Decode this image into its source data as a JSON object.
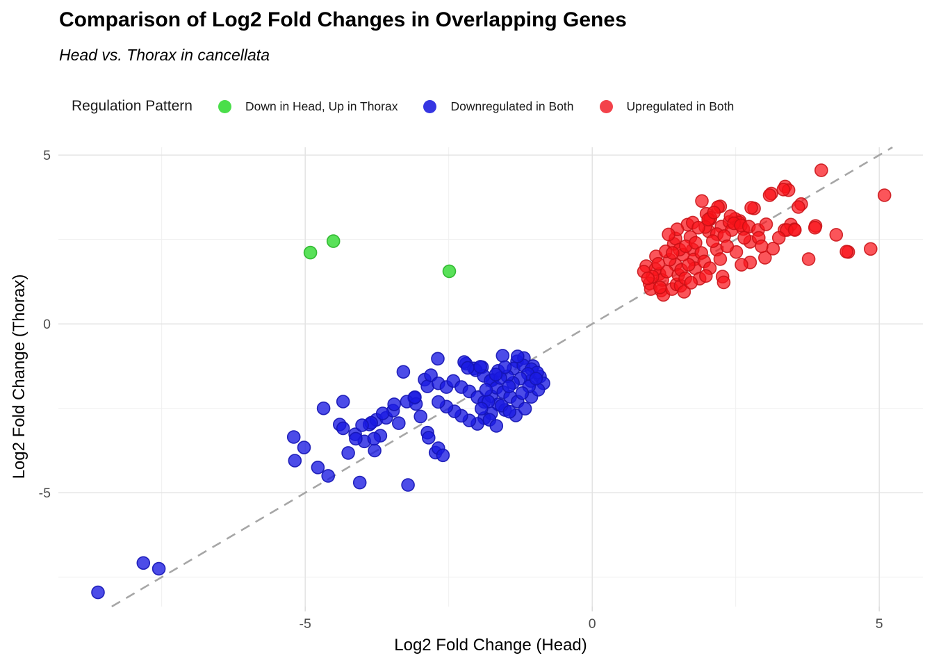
{
  "title": "Comparison of Log2 Fold Changes in Overlapping Genes",
  "subtitle": "Head vs. Thorax in cancellata",
  "legend": {
    "title": "Regulation Pattern",
    "items": [
      {
        "label": "Down in Head, Up in Thorax",
        "color": "#4ade4a"
      },
      {
        "label": "Downregulated in Both",
        "color": "#3636e2"
      },
      {
        "label": "Upregulated in Both",
        "color": "#f3424a"
      }
    ]
  },
  "chart_data": {
    "type": "scatter",
    "title": "Comparison of Log2 Fold Changes in Overlapping Genes",
    "subtitle": "Head vs. Thorax in cancellata",
    "xlabel": "Log2 Fold Change (Head)",
    "ylabel": "Log2 Fold Change (Thorax)",
    "xlim": [
      -9.3,
      5.76
    ],
    "ylim": [
      -8.37,
      5.23
    ],
    "x_ticks": [
      -5,
      0,
      5
    ],
    "x_tick_labels": [
      "-5",
      "0",
      "5"
    ],
    "y_ticks": [
      -5,
      0,
      5
    ],
    "y_tick_labels": [
      "-5",
      "0",
      "5"
    ],
    "x_minor_ticks": [
      -7.5,
      -2.5,
      2.5
    ],
    "y_minor_ticks": [
      -7.5,
      -2.5,
      2.5
    ],
    "grid": true,
    "legend_position": "top",
    "reference_line": {
      "type": "identity",
      "style": "dashed",
      "color": "#a6a6a6"
    },
    "series": [
      {
        "name": "Down in Head, Up in Thorax",
        "fill": "#3cdc3c",
        "fill_opacity": 0.85,
        "stroke": "#28b428",
        "stroke_opacity": 0.9,
        "points": [
          [
            -4.91,
            2.11
          ],
          [
            -4.51,
            2.45
          ],
          [
            -2.49,
            1.56
          ]
        ]
      },
      {
        "name": "Downregulated in Both",
        "fill": "#1919e1",
        "fill_opacity": 0.78,
        "stroke": "#1414b4",
        "stroke_opacity": 0.9,
        "points": [
          [
            -8.61,
            -7.95
          ],
          [
            -7.82,
            -7.08
          ],
          [
            -7.55,
            -7.25
          ],
          [
            -5.2,
            -3.35
          ],
          [
            -5.02,
            -3.66
          ],
          [
            -5.18,
            -4.05
          ],
          [
            -4.78,
            -4.25
          ],
          [
            -4.6,
            -4.5
          ],
          [
            -4.05,
            -4.7
          ],
          [
            -3.21,
            -4.77
          ],
          [
            -4.25,
            -3.82
          ],
          [
            -3.79,
            -3.75
          ],
          [
            -4.13,
            -3.27
          ],
          [
            -3.97,
            -3.48
          ],
          [
            -3.69,
            -3.31
          ],
          [
            -4.34,
            -2.3
          ],
          [
            -4.68,
            -2.5
          ],
          [
            -4.4,
            -2.98
          ],
          [
            -4.34,
            -3.09
          ],
          [
            -4.12,
            -3.4
          ],
          [
            -3.88,
            -2.98
          ],
          [
            -3.76,
            -2.84
          ],
          [
            -3.59,
            -2.78
          ],
          [
            -3.47,
            -2.57
          ],
          [
            -3.37,
            -2.94
          ],
          [
            -3.8,
            -3.4
          ],
          [
            -3.29,
            -1.42
          ],
          [
            -2.92,
            -1.65
          ],
          [
            -2.87,
            -1.85
          ],
          [
            -3.1,
            -2.19
          ],
          [
            -3.23,
            -2.3
          ],
          [
            -3.45,
            -2.38
          ],
          [
            -3.65,
            -2.65
          ],
          [
            -3.85,
            -2.93
          ],
          [
            -4.01,
            -3.0
          ],
          [
            -3.07,
            -2.37
          ],
          [
            -2.99,
            -2.74
          ],
          [
            -2.87,
            -3.22
          ],
          [
            -2.73,
            -3.81
          ],
          [
            -2.68,
            -3.68
          ],
          [
            -2.85,
            -3.37
          ],
          [
            -2.6,
            -3.89
          ],
          [
            -2.69,
            -1.03
          ],
          [
            -2.2,
            -1.18
          ],
          [
            -2.06,
            -1.32
          ],
          [
            -1.92,
            -1.28
          ],
          [
            -1.64,
            -1.39
          ],
          [
            -1.31,
            -1.11
          ],
          [
            -1.19,
            -1.01
          ],
          [
            -1.03,
            -1.25
          ],
          [
            -0.91,
            -1.56
          ],
          [
            -2.81,
            -1.52
          ],
          [
            -2.68,
            -1.76
          ],
          [
            -2.54,
            -1.87
          ],
          [
            -2.42,
            -1.69
          ],
          [
            -2.28,
            -1.87
          ],
          [
            -2.14,
            -2.0
          ],
          [
            -2.0,
            -2.17
          ],
          [
            -1.88,
            -2.31
          ],
          [
            -1.76,
            -2.14
          ],
          [
            -1.64,
            -2.38
          ],
          [
            -1.52,
            -2.55
          ],
          [
            -1.76,
            -2.65
          ],
          [
            -1.88,
            -2.79
          ],
          [
            -2.0,
            -2.96
          ],
          [
            -2.14,
            -2.86
          ],
          [
            -2.28,
            -2.72
          ],
          [
            -2.4,
            -2.59
          ],
          [
            -2.54,
            -2.45
          ],
          [
            -2.68,
            -2.31
          ],
          [
            -3.09,
            -2.17
          ],
          [
            -1.56,
            -0.94
          ],
          [
            -1.37,
            -1.32
          ],
          [
            -1.07,
            -1.69
          ],
          [
            -0.85,
            -1.76
          ],
          [
            -1.74,
            -1.66
          ],
          [
            -2.03,
            -1.37
          ],
          [
            -1.89,
            -1.54
          ],
          [
            -1.77,
            -1.68
          ],
          [
            -1.67,
            -1.89
          ],
          [
            -1.55,
            -2.02
          ],
          [
            -1.43,
            -2.16
          ],
          [
            -1.3,
            -2.3
          ],
          [
            -1.81,
            -2.3
          ],
          [
            -1.93,
            -2.51
          ],
          [
            -1.79,
            -2.84
          ],
          [
            -1.67,
            -3.02
          ],
          [
            -1.33,
            -2.71
          ],
          [
            -1.17,
            -2.51
          ],
          [
            -1.06,
            -2.16
          ],
          [
            -0.94,
            -1.95
          ],
          [
            -1.2,
            -1.23
          ],
          [
            -1.06,
            -1.34
          ],
          [
            -0.96,
            -1.44
          ],
          [
            -1.3,
            -0.96
          ],
          [
            -2.23,
            -1.13
          ],
          [
            -2.17,
            -1.3
          ],
          [
            -1.95,
            -1.27
          ],
          [
            -1.12,
            -1.48
          ],
          [
            -1.25,
            -1.62
          ],
          [
            -1.38,
            -1.75
          ],
          [
            -1.48,
            -1.55
          ],
          [
            -1.6,
            -1.6
          ],
          [
            -1.45,
            -1.85
          ],
          [
            -1.1,
            -1.85
          ],
          [
            -0.98,
            -1.62
          ],
          [
            -1.22,
            -2.05
          ],
          [
            -1.52,
            -1.28
          ],
          [
            -1.68,
            -1.5
          ],
          [
            -1.85,
            -1.95
          ],
          [
            -1.58,
            -2.42
          ],
          [
            -1.44,
            -2.6
          ]
        ]
      },
      {
        "name": "Upregulated in Both",
        "fill": "#fa141b",
        "fill_opacity": 0.72,
        "stroke": "#c80f14",
        "stroke_opacity": 0.85,
        "points": [
          [
            0.94,
            1.71
          ],
          [
            1.0,
            1.2
          ],
          [
            1.11,
            2.0
          ],
          [
            1.17,
            1.48
          ],
          [
            1.02,
            1.03
          ],
          [
            1.2,
            0.99
          ],
          [
            1.24,
            0.86
          ],
          [
            1.39,
            1.03
          ],
          [
            1.47,
            1.17
          ],
          [
            1.45,
            1.75
          ],
          [
            1.42,
            2.37
          ],
          [
            1.45,
            2.53
          ],
          [
            1.66,
            2.94
          ],
          [
            1.71,
            2.57
          ],
          [
            1.75,
            2.2
          ],
          [
            1.77,
            1.91
          ],
          [
            1.79,
            1.65
          ],
          [
            1.87,
            1.34
          ],
          [
            1.54,
            1.13
          ],
          [
            2.03,
            2.74
          ],
          [
            2.05,
            3.09
          ],
          [
            1.99,
            3.26
          ],
          [
            2.25,
            2.88
          ],
          [
            2.39,
            3.02
          ],
          [
            2.43,
            2.78
          ],
          [
            2.57,
            3.05
          ],
          [
            2.63,
            2.81
          ],
          [
            2.17,
            2.2
          ],
          [
            2.23,
            1.92
          ],
          [
            2.27,
            1.4
          ],
          [
            2.29,
            1.23
          ],
          [
            2.51,
            2.13
          ],
          [
            2.75,
            2.43
          ],
          [
            2.75,
            1.82
          ],
          [
            3.01,
            1.96
          ],
          [
            3.15,
            2.23
          ],
          [
            3.35,
            2.78
          ],
          [
            1.91,
            3.64
          ],
          [
            2.23,
            3.48
          ],
          [
            2.06,
            3.14
          ],
          [
            1.75,
            3.0
          ],
          [
            1.97,
            2.87
          ],
          [
            2.17,
            2.66
          ],
          [
            2.82,
            3.42
          ],
          [
            3.12,
            3.86
          ],
          [
            3.36,
            4.07
          ],
          [
            3.42,
            3.96
          ],
          [
            3.64,
            3.55
          ],
          [
            3.99,
            4.55
          ],
          [
            3.46,
            2.94
          ],
          [
            3.52,
            2.8
          ],
          [
            3.89,
            2.9
          ],
          [
            2.49,
            3.11
          ],
          [
            2.56,
            3.0
          ],
          [
            5.09,
            3.81
          ],
          [
            3.33,
            3.98
          ],
          [
            3.09,
            3.81
          ],
          [
            3.59,
            3.46
          ],
          [
            2.77,
            3.44
          ],
          [
            2.19,
            3.46
          ],
          [
            2.02,
            3.09
          ],
          [
            2.41,
            3.19
          ],
          [
            2.47,
            2.98
          ],
          [
            2.59,
            2.92
          ],
          [
            2.73,
            2.88
          ],
          [
            2.89,
            2.78
          ],
          [
            3.03,
            2.95
          ],
          [
            3.39,
            2.78
          ],
          [
            3.53,
            2.78
          ],
          [
            3.88,
            2.85
          ],
          [
            4.25,
            2.64
          ],
          [
            4.46,
            2.13
          ],
          [
            3.77,
            1.92
          ],
          [
            4.85,
            2.22
          ],
          [
            1.1,
            1.62
          ],
          [
            1.22,
            1.3
          ],
          [
            1.3,
            1.55
          ],
          [
            1.35,
            1.9
          ],
          [
            1.5,
            1.45
          ],
          [
            1.55,
            1.6
          ],
          [
            1.62,
            1.35
          ],
          [
            1.68,
            1.75
          ],
          [
            1.58,
            2.05
          ],
          [
            1.52,
            2.2
          ],
          [
            1.63,
            2.3
          ],
          [
            1.8,
            2.4
          ],
          [
            1.9,
            2.1
          ],
          [
            1.95,
            1.85
          ],
          [
            2.05,
            1.65
          ],
          [
            2.1,
            2.45
          ],
          [
            2.3,
            2.6
          ],
          [
            2.35,
            2.3
          ],
          [
            1.05,
            1.4
          ],
          [
            0.9,
            1.55
          ],
          [
            1.28,
            2.15
          ],
          [
            1.18,
            1.08
          ],
          [
            2.65,
            2.55
          ],
          [
            2.9,
            2.55
          ],
          [
            1.85,
            2.85
          ],
          [
            1.48,
            2.8
          ],
          [
            4.43,
            2.14
          ],
          [
            1.33,
            2.65
          ],
          [
            1.15,
            1.78
          ],
          [
            0.97,
            1.35
          ],
          [
            1.4,
            2.1
          ],
          [
            2.12,
            3.3
          ],
          [
            1.6,
            0.95
          ],
          [
            1.72,
            1.22
          ],
          [
            1.98,
            1.42
          ],
          [
            2.6,
            1.75
          ],
          [
            2.95,
            2.3
          ],
          [
            3.25,
            2.55
          ]
        ]
      }
    ]
  }
}
